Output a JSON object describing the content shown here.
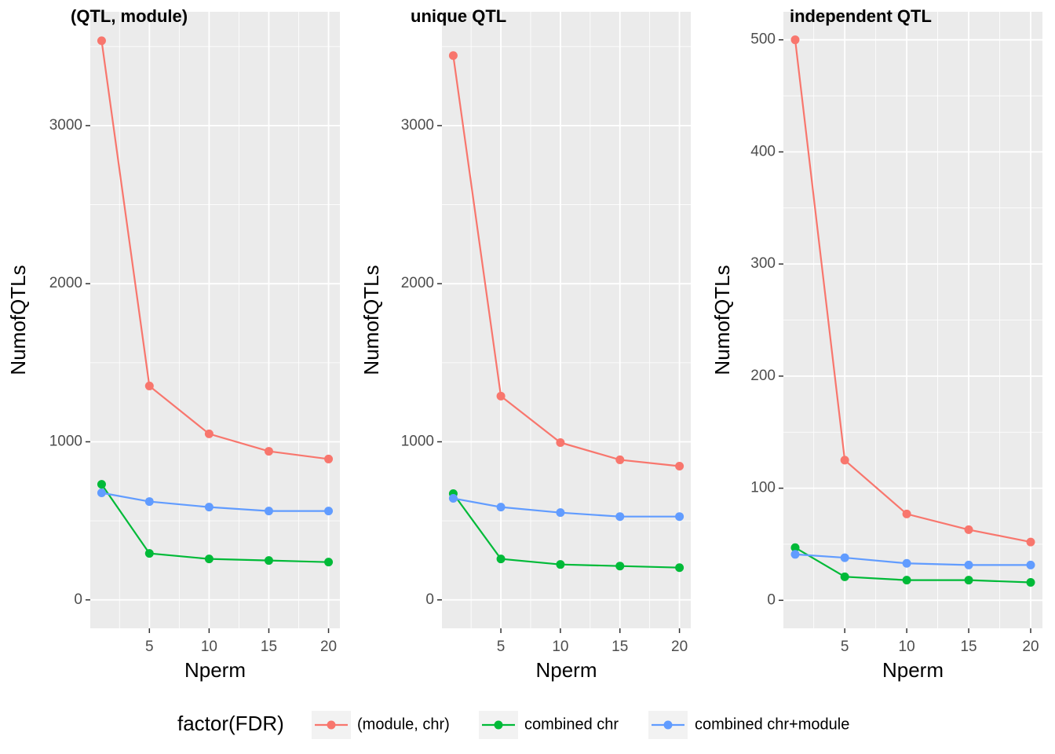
{
  "chart_data": [
    {
      "type": "line",
      "title": "(QTL, module)",
      "x_label": "Nperm",
      "y_label": "NumofQTLs",
      "x": [
        1,
        5,
        10,
        15,
        20
      ],
      "series": [
        {
          "name": "(module, chr)",
          "color": "#F8766D",
          "values": [
            3537,
            1353,
            1050,
            940,
            891
          ]
        },
        {
          "name": "combined chr",
          "color": "#00BA38",
          "values": [
            731,
            294,
            259,
            249,
            239
          ]
        },
        {
          "name": "combined chr+module",
          "color": "#619CFF",
          "values": [
            677,
            622,
            587,
            562,
            562
          ]
        }
      ],
      "xlim": [
        0.05,
        20.95
      ],
      "ylim": [
        -180,
        3720
      ],
      "xticks": [
        5,
        10,
        15,
        20
      ],
      "yticks": [
        0,
        1000,
        2000,
        3000
      ],
      "grid": true
    },
    {
      "type": "line",
      "title": "unique QTL",
      "x_label": "Nperm",
      "y_label": "NumofQTLs",
      "x": [
        1,
        5,
        10,
        15,
        20
      ],
      "series": [
        {
          "name": "(module, chr)",
          "color": "#F8766D",
          "values": [
            3443,
            1289,
            995,
            886,
            846
          ]
        },
        {
          "name": "combined chr",
          "color": "#00BA38",
          "values": [
            672,
            259,
            224,
            214,
            204
          ]
        },
        {
          "name": "combined chr+module",
          "color": "#619CFF",
          "values": [
            642,
            587,
            552,
            527,
            527
          ]
        }
      ],
      "xlim": [
        0.05,
        20.95
      ],
      "ylim": [
        -180,
        3720
      ],
      "xticks": [
        5,
        10,
        15,
        20
      ],
      "yticks": [
        0,
        1000,
        2000,
        3000
      ],
      "grid": true
    },
    {
      "type": "line",
      "title": "independent QTL",
      "x_label": "Nperm",
      "y_label": "NumofQTLs",
      "x": [
        1,
        5,
        10,
        15,
        20
      ],
      "series": [
        {
          "name": "(module, chr)",
          "color": "#F8766D",
          "values": [
            500,
            125,
            77,
            63,
            52
          ]
        },
        {
          "name": "combined chr",
          "color": "#00BA38",
          "values": [
            47,
            21,
            18,
            18,
            16
          ]
        },
        {
          "name": "combined chr+module",
          "color": "#619CFF",
          "values": [
            41,
            38,
            33,
            31.5,
            31.5
          ]
        }
      ],
      "xlim": [
        0.05,
        20.95
      ],
      "ylim": [
        -25,
        525
      ],
      "xticks": [
        5,
        10,
        15,
        20
      ],
      "yticks": [
        0,
        100,
        200,
        300,
        400,
        500
      ],
      "grid": true
    }
  ],
  "legend": {
    "title": "factor(FDR)"
  }
}
